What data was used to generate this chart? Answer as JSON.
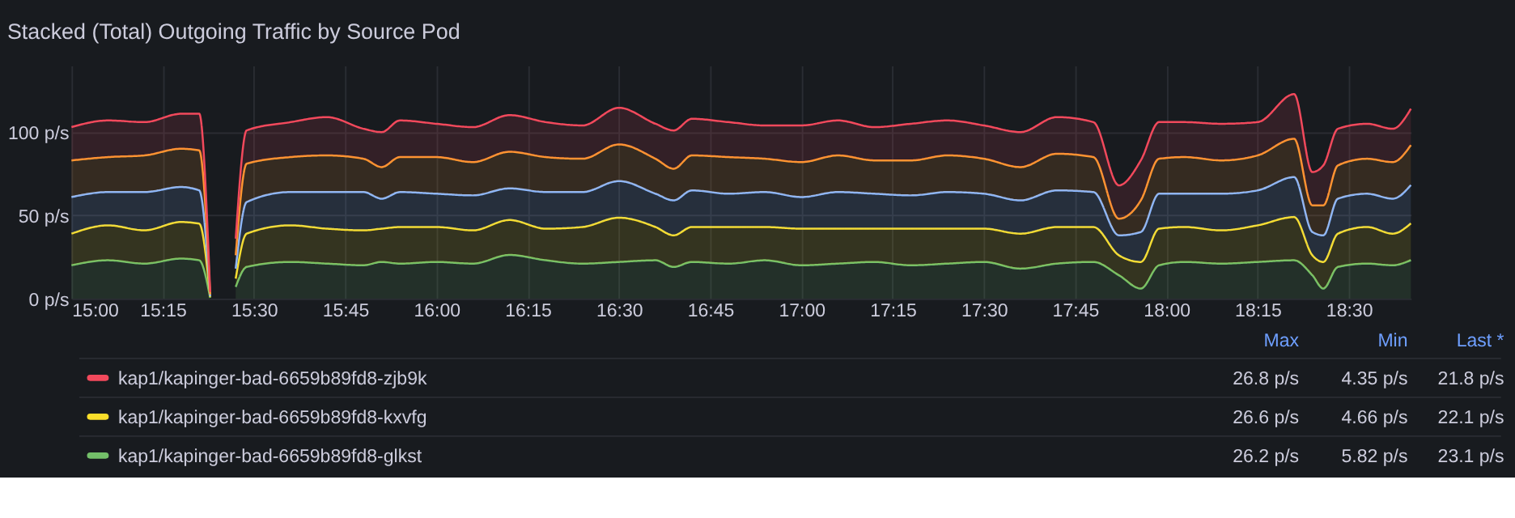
{
  "chart_data": {
    "type": "area",
    "title": "Stacked (Total) Outgoing Traffic by Source Pod",
    "stacked": true,
    "grid": true,
    "legend": "bottom",
    "marker": "none",
    "line_style": "solid",
    "x": [
      15.0,
      15.1,
      15.2,
      15.3,
      15.35,
      15.38,
      15.42,
      15.45,
      15.48,
      15.6,
      15.7,
      15.8,
      15.85,
      15.9,
      16.0,
      16.1,
      16.2,
      16.3,
      16.4,
      16.5,
      16.6,
      16.65,
      16.7,
      16.8,
      16.9,
      17.0,
      17.1,
      17.2,
      17.3,
      17.4,
      17.5,
      17.6,
      17.7,
      17.8,
      17.87,
      17.93,
      17.98,
      18.05,
      18.15,
      18.25,
      18.35,
      18.4,
      18.43,
      18.47,
      18.55,
      18.62,
      18.67
    ],
    "xlim": [
      15.0,
      18.67
    ],
    "xticks": [
      {
        "value": 15.0,
        "label": "15:00"
      },
      {
        "value": 15.25,
        "label": "15:15"
      },
      {
        "value": 15.5,
        "label": "15:30"
      },
      {
        "value": 15.75,
        "label": "15:45"
      },
      {
        "value": 16.0,
        "label": "16:00"
      },
      {
        "value": 16.25,
        "label": "16:15"
      },
      {
        "value": 16.5,
        "label": "16:30"
      },
      {
        "value": 16.75,
        "label": "16:45"
      },
      {
        "value": 17.0,
        "label": "17:00"
      },
      {
        "value": 17.25,
        "label": "17:15"
      },
      {
        "value": 17.5,
        "label": "17:30"
      },
      {
        "value": 17.75,
        "label": "17:45"
      },
      {
        "value": 18.0,
        "label": "18:00"
      },
      {
        "value": 18.25,
        "label": "18:15"
      },
      {
        "value": 18.5,
        "label": "18:30"
      }
    ],
    "ylim": [
      0,
      140
    ],
    "yticks": [
      {
        "value": 0,
        "label": "0 p/s"
      },
      {
        "value": 50,
        "label": "50 p/s"
      },
      {
        "value": 100,
        "label": "100 p/s"
      }
    ],
    "series": [
      {
        "name": "kap1/kapinger-bad-6659b89fd8-glkst",
        "color": "#73bf69",
        "values": [
          20,
          23,
          21,
          24,
          23,
          0.5,
          null,
          7,
          19,
          22,
          21,
          20,
          22,
          21,
          22,
          21,
          26.2,
          23,
          21,
          22,
          23,
          19,
          22,
          21,
          23,
          20,
          21,
          22,
          20,
          21,
          22,
          18,
          21,
          22,
          14,
          6,
          20,
          22,
          21,
          22,
          23,
          14,
          6,
          19,
          21,
          20,
          23.1
        ]
      },
      {
        "name": "kap1/kapinger-bad-6659b89fd8-kxvfg",
        "color": "#fade2a",
        "values": [
          19,
          21,
          20,
          22,
          22,
          0.5,
          null,
          5,
          20,
          22,
          21,
          21,
          20,
          22,
          21,
          20,
          21,
          19,
          22,
          26.6,
          20,
          19,
          21,
          22,
          20,
          22,
          21,
          20,
          22,
          21,
          20,
          21,
          22,
          21,
          12,
          16,
          22,
          21,
          20,
          22,
          26,
          12,
          16,
          20,
          22,
          19,
          22.1
        ]
      },
      {
        "color": "#8ab8ff",
        "values": [
          22,
          20,
          23,
          21,
          20,
          0.5,
          null,
          6,
          19,
          20,
          22,
          23,
          18,
          21,
          20,
          21,
          19,
          22,
          21,
          22,
          20,
          21,
          22,
          20,
          21,
          19,
          22,
          21,
          20,
          22,
          21,
          20,
          22,
          21,
          12,
          18,
          21,
          20,
          22,
          21,
          24,
          14,
          16,
          21,
          20,
          21,
          23
        ]
      },
      {
        "color": "#ff9830",
        "values": [
          22,
          21,
          22,
          23,
          24,
          1,
          null,
          8,
          23,
          21,
          22,
          20,
          19,
          21,
          22,
          20,
          22,
          21,
          20,
          22,
          21,
          19,
          21,
          22,
          20,
          21,
          22,
          20,
          21,
          22,
          21,
          20,
          22,
          21,
          10,
          19,
          21,
          22,
          20,
          21,
          23,
          16,
          18,
          20,
          21,
          22,
          24
        ]
      },
      {
        "name": "kap1/kapinger-bad-6659b89fd8-zjb9k",
        "color": "#f2495c",
        "values": [
          20,
          22,
          20,
          21,
          22,
          1.5,
          null,
          10,
          20,
          21,
          23,
          18,
          21,
          22,
          20,
          21,
          22,
          21,
          20,
          22,
          21,
          23,
          22,
          21,
          20,
          22,
          21,
          20,
          22,
          21,
          20,
          21,
          22,
          21,
          20,
          24,
          22,
          21,
          22,
          20,
          26.8,
          20,
          24,
          22,
          21,
          20,
          21.8
        ]
      }
    ],
    "annotations": [
      "Max",
      "Min",
      "Last *",
      "26.8 p/s",
      "4.35 p/s",
      "21.8 p/s",
      "26.6 p/s",
      "4.66 p/s",
      "22.1 p/s",
      "26.2 p/s",
      "5.82 p/s",
      "23.1 p/s"
    ]
  }
}
